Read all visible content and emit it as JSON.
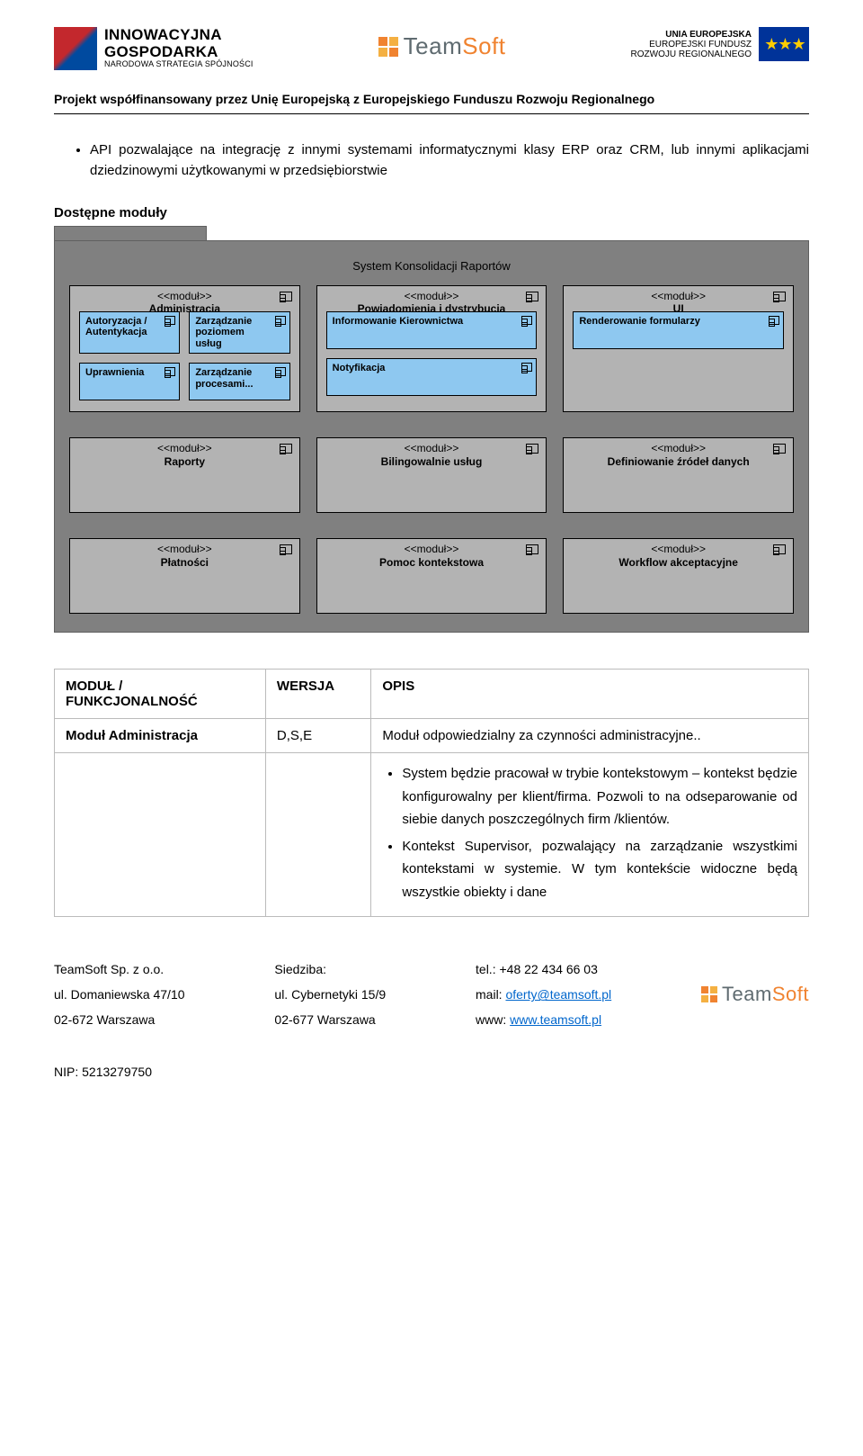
{
  "header": {
    "ig": {
      "line1": "INNOWACYJNA",
      "line2": "GOSPODARKA",
      "line3": "NARODOWA STRATEGIA SPÓJNOŚCI"
    },
    "teamsoft": {
      "team": "Team",
      "soft": "Soft",
      "colors": {
        "tl": "#f08330",
        "tr": "#f4b042",
        "bl": "#f4b042",
        "br": "#f08330",
        "team_color": "#5f6b70",
        "soft_color": "#f08330"
      }
    },
    "eu": {
      "line1": "UNIA EUROPEJSKA",
      "line2": "EUROPEJSKI FUNDUSZ",
      "line3": "ROZWOJU REGIONALNEGO"
    }
  },
  "subheader": "Projekt współfinansowany przez Unię Europejską z Europejskiego Funduszu Rozwoju Regionalnego",
  "bullet": "API pozwalające na integrację z innymi systemami informatycznymi klasy ERP oraz CRM, lub innymi aplikacjami dziedzinowymi użytkowanymi w przedsiębiorstwie",
  "section_title": "Dostępne moduły",
  "diagram": {
    "title": "System Konsolidacji Raportów",
    "stereotype": "<<moduł>>",
    "bg_outer": "#808080",
    "bg_module": "#b3b3b3",
    "bg_sub": "#8ec8f0",
    "row1": [
      {
        "name": "Administracja",
        "subs": [
          "Autoryzacja / Autentykacja",
          "Zarządzanie poziomem usług",
          "Uprawnienia",
          "Zarządzanie procesami..."
        ]
      },
      {
        "name": "Powiadomienia i dystrybucja",
        "subs": [
          "Informowanie Kierownictwa",
          "Notyfikacja"
        ]
      },
      {
        "name": "UI",
        "subs": [
          "Renderowanie formularzy"
        ]
      }
    ],
    "row2": [
      {
        "name": "Raporty"
      },
      {
        "name": "Bilingowalnie usług"
      },
      {
        "name": "Definiowanie źródeł danych"
      }
    ],
    "row3": [
      {
        "name": "Płatności"
      },
      {
        "name": "Pomoc kontekstowa"
      },
      {
        "name": "Workflow akceptacyjne"
      }
    ]
  },
  "table": {
    "headers": {
      "col1": "MODUŁ / FUNKCJONALNOŚĆ",
      "col2": "WERSJA",
      "col3": "OPIS"
    },
    "row": {
      "name": "Moduł Administracja",
      "version": "D,S,E",
      "desc": "Moduł odpowiedzialny za czynności administracyjne.."
    },
    "details": [
      "System będzie pracował w trybie kontekstowym – kontekst będzie konfigurowalny per klient/firma. Pozwoli to na odseparowanie od siebie danych poszczególnych firm /klientów.",
      "Kontekst Supervisor, pozwalający na zarządzanie wszystkimi kontekstami w systemie. W tym kontekście widoczne będą wszystkie obiekty i dane"
    ]
  },
  "footer": {
    "col1": {
      "company": "TeamSoft Sp. z o.o.",
      "street": "ul. Domaniewska 47/10",
      "city": "02-672 Warszawa"
    },
    "col2": {
      "heading": "Siedziba:",
      "street": "ul. Cybernetyki 15/9",
      "city": "02-677 Warszawa"
    },
    "col3": {
      "tel_label": "tel.: ",
      "tel": "+48 22 434 66 03",
      "mail_label": "mail: ",
      "mail": "oferty@teamsoft.pl",
      "www_label": "www: ",
      "www": "www.teamsoft.pl"
    },
    "nip": "NIP: 5213279750"
  }
}
